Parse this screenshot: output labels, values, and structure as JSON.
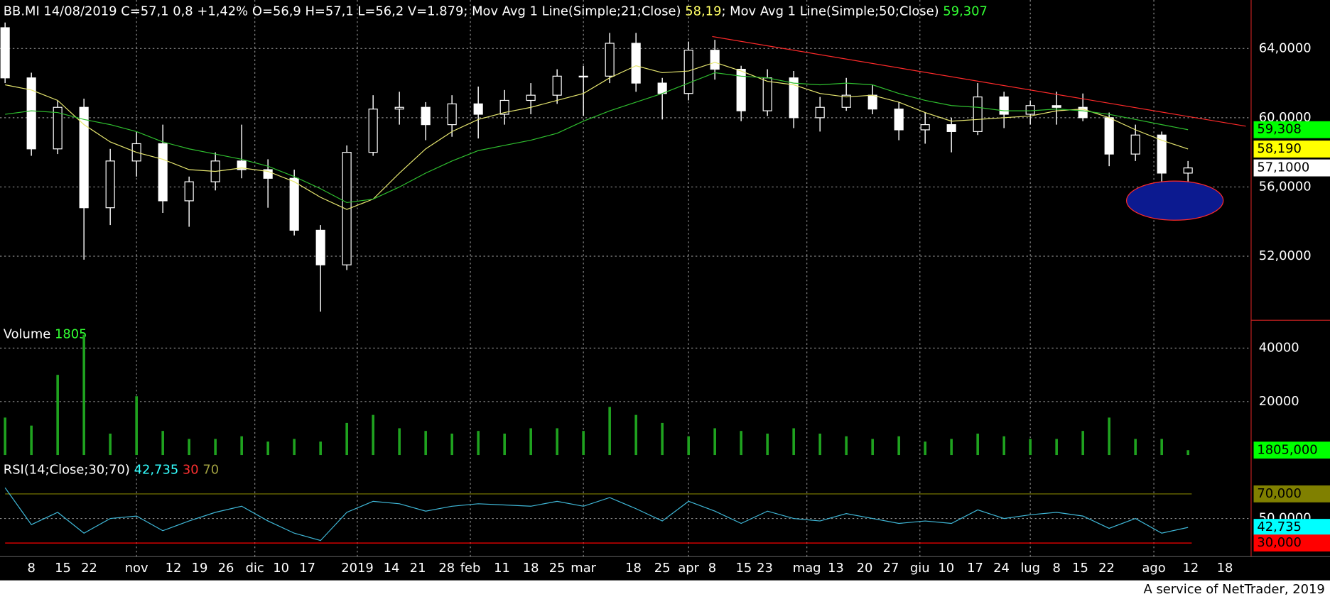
{
  "chart_data": [
    {
      "type": "candlestick",
      "title_parts": [
        {
          "text": "BB.MI 14/08/2019 C=57,1 0,8 +1,42% O=56,9 H=57,1 L=56,2 V=1.879",
          "color": "#ffffff"
        },
        {
          "text": "; Mov Avg 1 Line(Simple;21;Close) ",
          "color": "#ffffff"
        },
        {
          "text": "58,19",
          "color": "#ffff66"
        },
        {
          "text": "; Mov Avg 1 Line(Simple;50;Close) ",
          "color": "#ffffff"
        },
        {
          "text": "59,307",
          "color": "#33ff33"
        }
      ],
      "categories": [
        null,
        null,
        null,
        null,
        null,
        null,
        null,
        null,
        null,
        null,
        null,
        null,
        null,
        null,
        null,
        null,
        null,
        null,
        null,
        null,
        null,
        null,
        null,
        null,
        null,
        null,
        null,
        null,
        null,
        null,
        null,
        null,
        null,
        null,
        null,
        null,
        null,
        null,
        null,
        null,
        null,
        null,
        null,
        null,
        null,
        null
      ],
      "open": [
        65.2,
        62.3,
        58.2,
        60.6,
        54.8,
        57.5,
        58.5,
        55.2,
        56.3,
        57.5,
        57.0,
        56.5,
        53.5,
        51.5,
        58.0,
        60.5,
        60.6,
        59.6,
        60.8,
        60.2,
        61.0,
        61.3,
        62.4,
        62.4,
        64.3,
        62.0,
        61.4,
        63.9,
        62.8,
        60.4,
        62.3,
        60.0,
        60.6,
        61.3,
        60.5,
        59.3,
        59.6,
        59.2,
        61.2,
        60.2,
        60.7,
        60.6,
        60.0,
        57.9,
        59.0,
        56.8
      ],
      "high": [
        65.5,
        62.6,
        61.0,
        61.1,
        58.2,
        59.2,
        59.6,
        56.6,
        58.0,
        59.6,
        57.6,
        57.0,
        53.8,
        58.4,
        61.3,
        61.5,
        60.9,
        61.3,
        61.8,
        61.6,
        62.0,
        62.8,
        63.0,
        64.9,
        64.9,
        62.3,
        64.4,
        64.5,
        63.0,
        62.8,
        62.7,
        61.2,
        62.3,
        61.9,
        60.9,
        60.3,
        60.0,
        62.0,
        61.5,
        61.0,
        61.5,
        61.4,
        60.3,
        59.6,
        59.2,
        57.5
      ],
      "low": [
        62.0,
        57.8,
        57.9,
        51.8,
        53.8,
        56.6,
        54.5,
        53.7,
        55.8,
        56.5,
        54.8,
        53.2,
        48.8,
        51.2,
        57.8,
        59.6,
        58.7,
        58.9,
        58.8,
        59.6,
        60.2,
        60.8,
        60.1,
        62.0,
        61.5,
        59.9,
        61.0,
        62.2,
        59.8,
        60.1,
        59.4,
        59.2,
        60.4,
        60.2,
        58.7,
        58.5,
        58.0,
        59.0,
        59.4,
        59.6,
        59.6,
        59.8,
        57.2,
        57.5,
        55.5,
        55.8
      ],
      "close": [
        62.3,
        58.2,
        60.6,
        54.8,
        57.5,
        58.5,
        55.2,
        56.3,
        57.5,
        57.0,
        56.5,
        53.5,
        51.5,
        58.0,
        60.5,
        60.6,
        59.6,
        60.8,
        60.2,
        61.0,
        61.3,
        62.4,
        62.4,
        64.3,
        62.0,
        61.4,
        63.9,
        62.8,
        60.4,
        62.3,
        60.0,
        60.6,
        61.3,
        60.5,
        59.3,
        59.6,
        59.2,
        61.2,
        60.2,
        60.7,
        60.6,
        60.0,
        57.9,
        59.0,
        56.8,
        57.1
      ],
      "color": "#ffffff",
      "overlays": [
        {
          "color": "#e8e870",
          "values": [
            61.9,
            61.6,
            61.0,
            59.6,
            58.6,
            58.0,
            57.6,
            57.0,
            56.9,
            57.1,
            56.9,
            56.3,
            55.4,
            54.7,
            55.3,
            56.8,
            58.2,
            59.2,
            59.9,
            60.3,
            60.6,
            61.0,
            61.4,
            62.3,
            63.0,
            62.6,
            62.7,
            63.2,
            62.7,
            62.1,
            61.9,
            61.4,
            61.2,
            61.3,
            60.9,
            60.3,
            59.8,
            59.9,
            60.0,
            60.1,
            60.4,
            60.5,
            60.0,
            59.3,
            58.7,
            58.19
          ]
        },
        {
          "color": "#2fbf2f",
          "values": [
            60.2,
            60.4,
            60.3,
            59.9,
            59.6,
            59.2,
            58.6,
            58.2,
            57.9,
            57.6,
            57.2,
            56.6,
            55.9,
            55.1,
            55.3,
            56.0,
            56.8,
            57.5,
            58.1,
            58.4,
            58.7,
            59.1,
            59.8,
            60.4,
            60.9,
            61.4,
            62.0,
            62.6,
            62.4,
            62.3,
            62.0,
            61.9,
            62.0,
            61.9,
            61.4,
            61.0,
            60.7,
            60.6,
            60.4,
            60.4,
            60.5,
            60.4,
            60.2,
            59.9,
            59.6,
            59.308
          ]
        }
      ],
      "xlim": [
        0,
        47.4
      ],
      "xticks": [
        {
          "value": 1.0,
          "label": "8"
        },
        {
          "value": 2.2,
          "label": "15"
        },
        {
          "value": 3.2,
          "label": "22"
        },
        {
          "value": 5.0,
          "label": "nov",
          "vgrid": true
        },
        {
          "value": 6.4,
          "label": "12"
        },
        {
          "value": 7.4,
          "label": "19"
        },
        {
          "value": 8.4,
          "label": "26"
        },
        {
          "value": 9.5,
          "label": "dic",
          "vgrid": true
        },
        {
          "value": 10.5,
          "label": "10"
        },
        {
          "value": 11.5,
          "label": "17"
        },
        {
          "value": 13.4,
          "label": "2019",
          "vgrid": true
        },
        {
          "value": 14.7,
          "label": "14"
        },
        {
          "value": 15.7,
          "label": "21"
        },
        {
          "value": 16.8,
          "label": "28"
        },
        {
          "value": 17.7,
          "label": "feb",
          "vgrid": true
        },
        {
          "value": 18.9,
          "label": "11"
        },
        {
          "value": 20.0,
          "label": "18"
        },
        {
          "value": 21.0,
          "label": "25"
        },
        {
          "value": 22.0,
          "label": "mar",
          "vgrid": true
        },
        {
          "value": 23.9,
          "label": "18"
        },
        {
          "value": 25.0,
          "label": "25"
        },
        {
          "value": 26.0,
          "label": "apr",
          "vgrid": true
        },
        {
          "value": 26.9,
          "label": "8"
        },
        {
          "value": 28.1,
          "label": "15"
        },
        {
          "value": 28.9,
          "label": "23"
        },
        {
          "value": 30.5,
          "label": "mag",
          "vgrid": true
        },
        {
          "value": 31.6,
          "label": "13"
        },
        {
          "value": 32.7,
          "label": "20"
        },
        {
          "value": 33.7,
          "label": "27"
        },
        {
          "value": 34.8,
          "label": "giu",
          "vgrid": true
        },
        {
          "value": 35.8,
          "label": "10"
        },
        {
          "value": 36.9,
          "label": "17"
        },
        {
          "value": 37.9,
          "label": "24"
        },
        {
          "value": 39.0,
          "label": "lug",
          "vgrid": true
        },
        {
          "value": 40.0,
          "label": "8"
        },
        {
          "value": 40.9,
          "label": "15"
        },
        {
          "value": 41.9,
          "label": "22"
        },
        {
          "value": 43.7,
          "label": "ago",
          "vgrid": true
        },
        {
          "value": 45.1,
          "label": "12"
        },
        {
          "value": 46.4,
          "label": "18"
        }
      ],
      "ylim": [
        48.3,
        66.8
      ],
      "yticks": [
        {
          "value": 52,
          "label": "52,0000"
        },
        {
          "value": 56,
          "label": "56,0000"
        },
        {
          "value": 60,
          "label": "60,0000"
        },
        {
          "value": 64,
          "label": "64,0000"
        }
      ],
      "grid": true,
      "tags": [
        {
          "value": 59.308,
          "label": "59,308",
          "color": "#00ff00"
        },
        {
          "value": 58.19,
          "label": "58,190",
          "color": "#ffff00"
        },
        {
          "value": 57.1,
          "label": "57,1000",
          "color": "#ffffff"
        }
      ],
      "trendline": {
        "x": [
          26.9,
          47.2
        ],
        "y": [
          64.69,
          59.51
        ],
        "color": "#ff2a2a"
      },
      "ellipse": {
        "cx": 44.5,
        "cy": 55.21,
        "rx": 1.84,
        "ry": 1.13,
        "fill": "#0c1a90",
        "stroke": "#ff2a2a"
      }
    },
    {
      "type": "bar",
      "label_parts": [
        {
          "text": "Volume ",
          "color": "#ffffff"
        },
        {
          "text": "1805",
          "color": "#33ff33"
        }
      ],
      "values": [
        14000,
        11000,
        30000,
        45000,
        8000,
        22000,
        9000,
        6000,
        6000,
        7000,
        5000,
        6000,
        5000,
        12000,
        15000,
        10000,
        9000,
        8000,
        9000,
        8000,
        10000,
        10000,
        9000,
        18000,
        15000,
        12000,
        7000,
        10000,
        9000,
        8000,
        10000,
        8000,
        7000,
        6000,
        7000,
        5000,
        6000,
        8000,
        7000,
        6000,
        6000,
        9000,
        14000,
        6000,
        6000,
        1805
      ],
      "color": "#1fa31f",
      "ylim": [
        0,
        49800
      ],
      "yticks": [
        20000,
        40000
      ],
      "grid": true,
      "tags": [
        {
          "value": 1805,
          "label": "1805,000",
          "color": "#00ff00"
        }
      ]
    },
    {
      "type": "line",
      "label_parts": [
        {
          "text": "RSI(14;Close;30;70) ",
          "color": "#ffffff"
        },
        {
          "text": "42,735",
          "color": "#33ffff"
        },
        {
          "text": " 30",
          "color": "#ff3030"
        },
        {
          "text": " 70",
          "color": "#a0a040"
        }
      ],
      "values": [
        75,
        45,
        55,
        38,
        50,
        52,
        40,
        48,
        55,
        60,
        48,
        38,
        32,
        55,
        64,
        62,
        56,
        60,
        62,
        61,
        60,
        64,
        60,
        67,
        58,
        48,
        64,
        56,
        46,
        56,
        50,
        48,
        54,
        50,
        46,
        48,
        46,
        57,
        50,
        53,
        55,
        52,
        42,
        50,
        38,
        42.735
      ],
      "color": "#3fb8d8",
      "ylim": [
        20.3,
        96.2
      ],
      "yticks": [
        {
          "value": 50,
          "label": "50,0000"
        }
      ],
      "grid": true,
      "levels": [
        {
          "value": 70,
          "color": "#808000"
        },
        {
          "value": 30,
          "color": "#ff0000"
        }
      ],
      "tags": [
        {
          "value": 70,
          "label": "70,000",
          "color": "#808000"
        },
        {
          "value": 42.735,
          "label": "42,735",
          "color": "#00ffff"
        },
        {
          "value": 30,
          "label": "30,000",
          "color": "#ff0000"
        }
      ]
    }
  ],
  "footer": "A service of NetTrader, 2019"
}
